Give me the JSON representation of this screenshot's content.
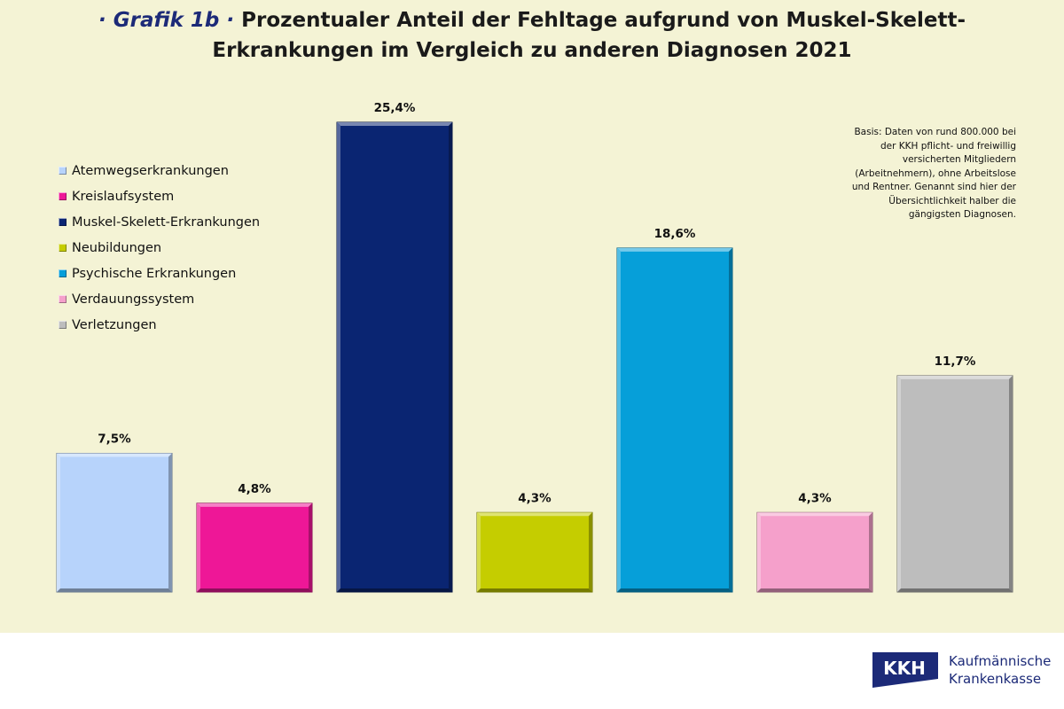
{
  "title": {
    "prefix": "· Grafik 1b ·",
    "line1": " Prozentualer Anteil der Fehltage aufgrund von Muskel-Skelett-",
    "line2": "Erkrankungen im Vergleich zu anderen Diagnosen 2021"
  },
  "note": "Basis: Daten von rund 800.000 bei der KKH pflicht- und freiwillig versicherten Mitgliedern (Arbeitnehmern), ohne Arbeitslose und Rentner. Genannt sind hier der Übersichtlichkeit halber die gängigsten Diagnosen.",
  "chart_data": {
    "type": "bar",
    "categories": [
      "Atemwegserkrankungen",
      "Kreislaufsystem",
      "Muskel-Skelett-Erkrankungen",
      "Neubildungen",
      "Psychische Erkrankungen",
      "Verdauungssystem",
      "Verletzungen"
    ],
    "values": [
      7.5,
      4.8,
      25.4,
      4.3,
      18.6,
      4.3,
      11.7
    ],
    "value_labels": [
      "7,5%",
      "4,8%",
      "25,4%",
      "4,3%",
      "18,6%",
      "4,3%",
      "11,7%"
    ],
    "colors": [
      "#b7d3fb",
      "#ee1797",
      "#0a2572",
      "#c5cd00",
      "#069fd9",
      "#f5a0cb",
      "#bdbdbd"
    ],
    "legend_position": "top-left",
    "grid": false,
    "xlabel": "",
    "ylabel": "",
    "ylim": [
      0,
      25.4
    ]
  },
  "logo": {
    "mark": "KKH",
    "line1": "Kaufmännische",
    "line2": "Krankenkasse",
    "color": "#1c2a78"
  }
}
